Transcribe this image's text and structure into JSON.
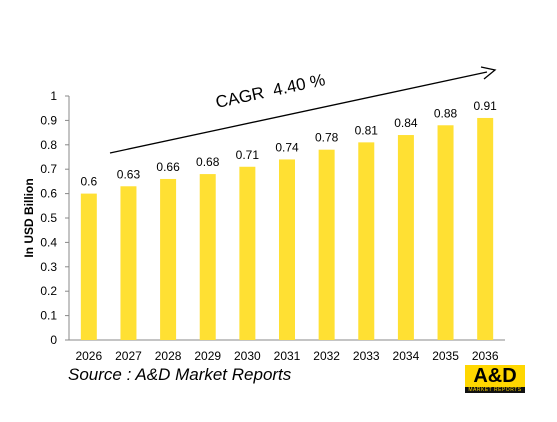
{
  "chart_data": {
    "type": "bar",
    "categories": [
      "2026",
      "2027",
      "2028",
      "2029",
      "2030",
      "2031",
      "2032",
      "2033",
      "2034",
      "2035",
      "2036"
    ],
    "values": [
      0.6,
      0.63,
      0.66,
      0.68,
      0.71,
      0.74,
      0.78,
      0.81,
      0.84,
      0.88,
      0.91
    ],
    "data_labels": [
      "0.6",
      "0.63",
      "0.66",
      "0.68",
      "0.71",
      "0.74",
      "0.78",
      "0.81",
      "0.84",
      "0.88",
      "0.91"
    ],
    "ylabel": "In USD Billion",
    "xlabel": "",
    "ylim": [
      0,
      1
    ],
    "yticks": [
      "0",
      "0.1",
      "0.2",
      "0.3",
      "0.4",
      "0.5",
      "0.6",
      "0.7",
      "0.8",
      "0.9",
      "1"
    ],
    "bar_color": "#FFE033",
    "grid": false,
    "annotation": "CAGR  4.40 %"
  },
  "source": "Source : A&D Market Reports",
  "logo": {
    "text": "A&D",
    "subtext": "MARKET REPORTS",
    "color": "#FFD700"
  }
}
